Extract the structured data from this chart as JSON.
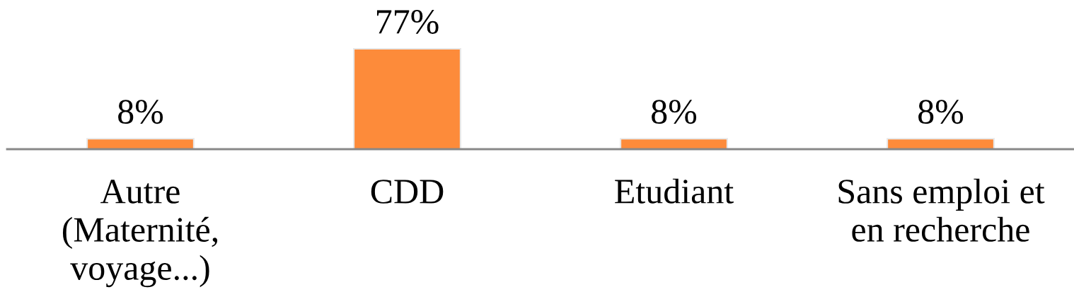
{
  "chart_data": {
    "type": "bar",
    "categories": [
      "Autre\n(Maternité,\nvoyage...)",
      "CDD",
      "Etudiant",
      "Sans emploi et\nen recherche"
    ],
    "values": [
      8,
      77,
      8,
      8
    ],
    "value_labels": [
      "8%",
      "77%",
      "8%",
      "8%"
    ],
    "color": "#fd8b3a",
    "grid": false,
    "legend": false
  }
}
